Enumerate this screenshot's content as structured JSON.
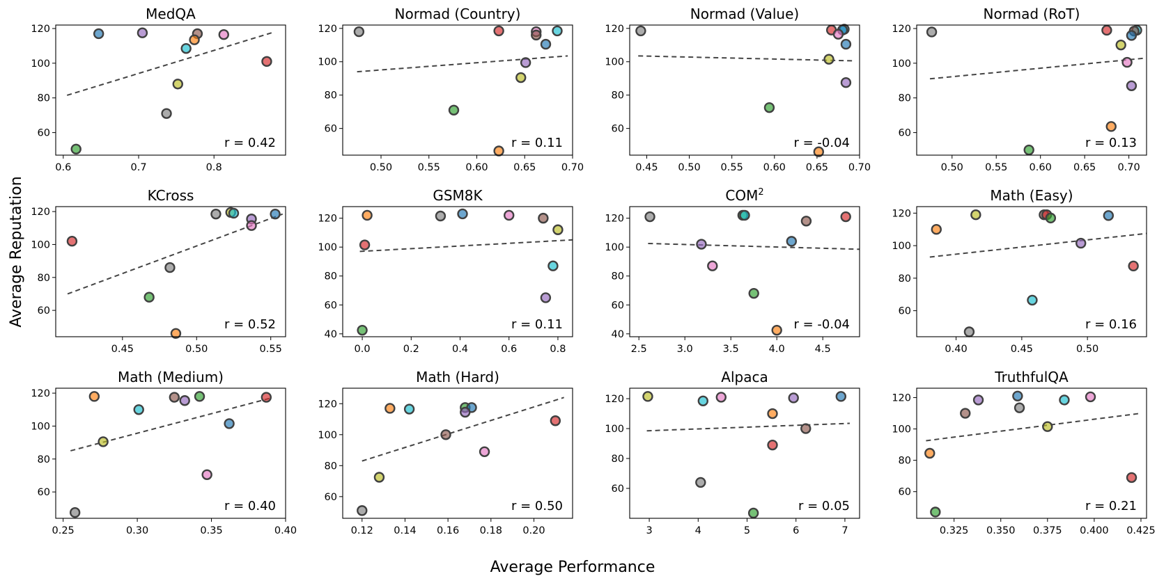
{
  "figure": {
    "xlabel": "Average Performance",
    "ylabel": "Average Reputation",
    "colors": {
      "blue": "#1f77b4",
      "orange": "#ff7f0e",
      "green": "#2ca02c",
      "red": "#d62728",
      "purple": "#9467bd",
      "brown": "#8c564b",
      "pink": "#e377c2",
      "gray": "#7f7f7f",
      "olive": "#bcbd22",
      "cyan": "#17becf",
      "edge": "#404040",
      "trend": "#444444"
    }
  },
  "chart_data": [
    {
      "type": "scatter",
      "title": "MedQA",
      "r_label": "r = 0.42",
      "xlim": [
        0.59,
        0.895
      ],
      "ylim": [
        47,
        122
      ],
      "xticks": [
        0.6,
        0.7,
        0.8
      ],
      "xtick_labels": [
        "0.6",
        "0.7",
        "0.8"
      ],
      "yticks": [
        60,
        80,
        100,
        120
      ],
      "ytick_labels": [
        "60",
        "80",
        "100",
        "120"
      ],
      "trend": [
        [
          0.605,
          81.5
        ],
        [
          0.88,
          118
        ]
      ],
      "points": [
        {
          "x": 0.647,
          "y": 117,
          "c": "blue"
        },
        {
          "x": 0.705,
          "y": 117.5,
          "c": "purple"
        },
        {
          "x": 0.778,
          "y": 117,
          "c": "brown"
        },
        {
          "x": 0.813,
          "y": 116.5,
          "c": "pink"
        },
        {
          "x": 0.774,
          "y": 113.5,
          "c": "orange"
        },
        {
          "x": 0.763,
          "y": 108.5,
          "c": "cyan"
        },
        {
          "x": 0.87,
          "y": 101,
          "c": "red"
        },
        {
          "x": 0.752,
          "y": 88,
          "c": "olive"
        },
        {
          "x": 0.737,
          "y": 71,
          "c": "gray"
        },
        {
          "x": 0.617,
          "y": 50.5,
          "c": "green"
        }
      ]
    },
    {
      "type": "scatter",
      "title": "Normad (Country)",
      "r_label": "r = 0.11",
      "xlim": [
        0.46,
        0.7
      ],
      "ylim": [
        44,
        122
      ],
      "xticks": [
        0.5,
        0.55,
        0.6,
        0.65,
        0.7
      ],
      "xtick_labels": [
        "0.50",
        "0.55",
        "0.60",
        "0.65",
        "0.70"
      ],
      "yticks": [
        60,
        80,
        100,
        120
      ],
      "ytick_labels": [
        "60",
        "80",
        "100",
        "120"
      ],
      "trend": [
        [
          0.475,
          94
        ],
        [
          0.695,
          103.5
        ]
      ],
      "points": [
        {
          "x": 0.477,
          "y": 118,
          "c": "gray"
        },
        {
          "x": 0.623,
          "y": 118.5,
          "c": "red"
        },
        {
          "x": 0.662,
          "y": 118,
          "c": "pink"
        },
        {
          "x": 0.684,
          "y": 118.5,
          "c": "cyan"
        },
        {
          "x": 0.662,
          "y": 116,
          "c": "brown"
        },
        {
          "x": 0.672,
          "y": 110.5,
          "c": "blue"
        },
        {
          "x": 0.651,
          "y": 99.5,
          "c": "purple"
        },
        {
          "x": 0.646,
          "y": 90.5,
          "c": "olive"
        },
        {
          "x": 0.576,
          "y": 71,
          "c": "green"
        },
        {
          "x": 0.623,
          "y": 46.5,
          "c": "orange"
        }
      ]
    },
    {
      "type": "scatter",
      "title": "Normad (Value)",
      "r_label": "r = -0.04",
      "xlim": [
        0.43,
        0.7
      ],
      "ylim": [
        44,
        122
      ],
      "xticks": [
        0.45,
        0.5,
        0.55,
        0.6,
        0.65,
        0.7
      ],
      "xtick_labels": [
        "0.45",
        "0.50",
        "0.55",
        "0.60",
        "0.65",
        "0.70"
      ],
      "yticks": [
        60,
        80,
        100,
        120
      ],
      "ytick_labels": [
        "60",
        "80",
        "100",
        "120"
      ],
      "trend": [
        [
          0.44,
          103.5
        ],
        [
          0.695,
          100.5
        ]
      ],
      "points": [
        {
          "x": 0.443,
          "y": 118.5,
          "c": "gray"
        },
        {
          "x": 0.667,
          "y": 119,
          "c": "red"
        },
        {
          "x": 0.682,
          "y": 119.5,
          "c": "cyan"
        },
        {
          "x": 0.68,
          "y": 119,
          "c": "blue"
        },
        {
          "x": 0.675,
          "y": 116.5,
          "c": "pink"
        },
        {
          "x": 0.684,
          "y": 110.5,
          "c": "blue"
        },
        {
          "x": 0.664,
          "y": 101.5,
          "c": "olive"
        },
        {
          "x": 0.684,
          "y": 87.5,
          "c": "purple"
        },
        {
          "x": 0.594,
          "y": 72.5,
          "c": "green"
        },
        {
          "x": 0.652,
          "y": 46,
          "c": "orange"
        }
      ]
    },
    {
      "type": "scatter",
      "title": "Normad (RoT)",
      "r_label": "r = 0.13",
      "xlim": [
        0.46,
        0.72
      ],
      "ylim": [
        47,
        122
      ],
      "xticks": [
        0.5,
        0.55,
        0.6,
        0.65,
        0.7
      ],
      "xtick_labels": [
        "0.50",
        "0.55",
        "0.60",
        "0.65",
        "0.70"
      ],
      "yticks": [
        60,
        80,
        100,
        120
      ],
      "ytick_labels": [
        "60",
        "80",
        "100",
        "120"
      ],
      "trend": [
        [
          0.475,
          91
        ],
        [
          0.72,
          103
        ]
      ],
      "points": [
        {
          "x": 0.477,
          "y": 118,
          "c": "gray"
        },
        {
          "x": 0.675,
          "y": 119,
          "c": "red"
        },
        {
          "x": 0.709,
          "y": 119,
          "c": "cyan"
        },
        {
          "x": 0.706,
          "y": 118.5,
          "c": "brown"
        },
        {
          "x": 0.703,
          "y": 116,
          "c": "blue"
        },
        {
          "x": 0.691,
          "y": 110.5,
          "c": "olive"
        },
        {
          "x": 0.698,
          "y": 100.5,
          "c": "pink"
        },
        {
          "x": 0.703,
          "y": 87,
          "c": "purple"
        },
        {
          "x": 0.68,
          "y": 63.5,
          "c": "orange"
        },
        {
          "x": 0.587,
          "y": 50,
          "c": "green"
        }
      ]
    },
    {
      "type": "scatter",
      "title": "KCross",
      "r_label": "r = 0.52",
      "xlim": [
        0.405,
        0.56
      ],
      "ylim": [
        44,
        123
      ],
      "xticks": [
        0.45,
        0.5,
        0.55
      ],
      "xtick_labels": [
        "0.45",
        "0.50",
        "0.55"
      ],
      "yticks": [
        60,
        80,
        100,
        120
      ],
      "ytick_labels": [
        "60",
        "80",
        "100",
        "120"
      ],
      "trend": [
        [
          0.413,
          70
        ],
        [
          0.558,
          118.5
        ]
      ],
      "points": [
        {
          "x": 0.513,
          "y": 118.5,
          "c": "gray"
        },
        {
          "x": 0.523,
          "y": 119.5,
          "c": "olive"
        },
        {
          "x": 0.525,
          "y": 119,
          "c": "cyan"
        },
        {
          "x": 0.553,
          "y": 118.5,
          "c": "blue"
        },
        {
          "x": 0.537,
          "y": 115.5,
          "c": "purple"
        },
        {
          "x": 0.537,
          "y": 111.5,
          "c": "pink"
        },
        {
          "x": 0.416,
          "y": 102,
          "c": "red"
        },
        {
          "x": 0.482,
          "y": 86,
          "c": "gray"
        },
        {
          "x": 0.468,
          "y": 68,
          "c": "green"
        },
        {
          "x": 0.486,
          "y": 46,
          "c": "orange"
        }
      ]
    },
    {
      "type": "scatter",
      "title": "GSM8K",
      "r_label": "r = 0.11",
      "xlim": [
        -0.08,
        0.86
      ],
      "ylim": [
        38,
        128
      ],
      "xticks": [
        0,
        0.2,
        0.4,
        0.6,
        0.8
      ],
      "xtick_labels": [
        "0.0",
        "0.2",
        "0.4",
        "0.6",
        "0.8"
      ],
      "yticks": [
        40,
        60,
        80,
        100,
        120
      ],
      "ytick_labels": [
        "40",
        "60",
        "80",
        "100",
        "120"
      ],
      "trend": [
        [
          -0.01,
          97
        ],
        [
          0.86,
          105
        ]
      ],
      "points": [
        {
          "x": 0.02,
          "y": 122,
          "c": "orange"
        },
        {
          "x": 0.32,
          "y": 121.5,
          "c": "gray"
        },
        {
          "x": 0.41,
          "y": 123,
          "c": "blue"
        },
        {
          "x": 0.6,
          "y": 122,
          "c": "pink"
        },
        {
          "x": 0.74,
          "y": 120,
          "c": "brown"
        },
        {
          "x": 0.8,
          "y": 112,
          "c": "olive"
        },
        {
          "x": 0.01,
          "y": 101.5,
          "c": "red"
        },
        {
          "x": 0.78,
          "y": 87,
          "c": "cyan"
        },
        {
          "x": 0.75,
          "y": 65,
          "c": "purple"
        },
        {
          "x": 0.0,
          "y": 42.5,
          "c": "green"
        }
      ]
    },
    {
      "type": "scatter",
      "title": "COM",
      "title_sup": "2",
      "r_label": "r = -0.04",
      "xlim": [
        2.4,
        4.9
      ],
      "ylim": [
        38,
        128
      ],
      "xticks": [
        2.5,
        3.0,
        3.5,
        4.0,
        4.5
      ],
      "xtick_labels": [
        "2.5",
        "3.0",
        "3.5",
        "4.0",
        "4.5"
      ],
      "yticks": [
        40,
        60,
        80,
        100,
        120
      ],
      "ytick_labels": [
        "40",
        "60",
        "80",
        "100",
        "120"
      ],
      "trend": [
        [
          2.6,
          102.5
        ],
        [
          4.9,
          98.5
        ]
      ],
      "points": [
        {
          "x": 2.62,
          "y": 121,
          "c": "gray"
        },
        {
          "x": 3.63,
          "y": 122,
          "c": "green"
        },
        {
          "x": 3.65,
          "y": 122,
          "c": "cyan"
        },
        {
          "x": 4.75,
          "y": 121,
          "c": "red"
        },
        {
          "x": 4.32,
          "y": 118,
          "c": "brown"
        },
        {
          "x": 4.16,
          "y": 104,
          "c": "blue"
        },
        {
          "x": 3.18,
          "y": 102,
          "c": "purple"
        },
        {
          "x": 3.3,
          "y": 87,
          "c": "pink"
        },
        {
          "x": 3.75,
          "y": 68,
          "c": "green"
        },
        {
          "x": 4.0,
          "y": 42.5,
          "c": "orange"
        }
      ]
    },
    {
      "type": "scatter",
      "title": "Math (Easy)",
      "r_label": "r = 0.16",
      "xlim": [
        0.37,
        0.545
      ],
      "ylim": [
        44,
        124
      ],
      "xticks": [
        0.4,
        0.45,
        0.5
      ],
      "xtick_labels": [
        "0.40",
        "0.45",
        "0.50"
      ],
      "yticks": [
        60,
        80,
        100,
        120
      ],
      "ytick_labels": [
        "60",
        "80",
        "100",
        "120"
      ],
      "trend": [
        [
          0.38,
          93
        ],
        [
          0.545,
          107.5
        ]
      ],
      "points": [
        {
          "x": 0.385,
          "y": 110,
          "c": "orange"
        },
        {
          "x": 0.415,
          "y": 119,
          "c": "olive"
        },
        {
          "x": 0.467,
          "y": 119,
          "c": "brown"
        },
        {
          "x": 0.469,
          "y": 119,
          "c": "red"
        },
        {
          "x": 0.472,
          "y": 117,
          "c": "green"
        },
        {
          "x": 0.516,
          "y": 118.5,
          "c": "blue"
        },
        {
          "x": 0.495,
          "y": 101.5,
          "c": "purple"
        },
        {
          "x": 0.535,
          "y": 87.5,
          "c": "red"
        },
        {
          "x": 0.458,
          "y": 66.5,
          "c": "cyan"
        },
        {
          "x": 0.41,
          "y": 47,
          "c": "gray"
        }
      ]
    },
    {
      "type": "scatter",
      "title": "Math (Medium)",
      "r_label": "r = 0.40",
      "xlim": [
        0.245,
        0.4
      ],
      "ylim": [
        44,
        123
      ],
      "xticks": [
        0.25,
        0.3,
        0.35,
        0.4
      ],
      "xtick_labels": [
        "0.25",
        "0.30",
        "0.35",
        "0.40"
      ],
      "yticks": [
        60,
        80,
        100,
        120
      ],
      "ytick_labels": [
        "60",
        "80",
        "100",
        "120"
      ],
      "trend": [
        [
          0.255,
          85
        ],
        [
          0.39,
          117
        ]
      ],
      "points": [
        {
          "x": 0.271,
          "y": 118,
          "c": "orange"
        },
        {
          "x": 0.325,
          "y": 117.5,
          "c": "brown"
        },
        {
          "x": 0.332,
          "y": 115.5,
          "c": "purple"
        },
        {
          "x": 0.342,
          "y": 118,
          "c": "green"
        },
        {
          "x": 0.387,
          "y": 117.5,
          "c": "red"
        },
        {
          "x": 0.301,
          "y": 110,
          "c": "cyan"
        },
        {
          "x": 0.362,
          "y": 101.5,
          "c": "blue"
        },
        {
          "x": 0.277,
          "y": 90.5,
          "c": "olive"
        },
        {
          "x": 0.347,
          "y": 70.5,
          "c": "pink"
        },
        {
          "x": 0.258,
          "y": 47.5,
          "c": "gray"
        }
      ]
    },
    {
      "type": "scatter",
      "title": "Math (Hard)",
      "r_label": "r = 0.50",
      "xlim": [
        0.111,
        0.218
      ],
      "ylim": [
        46,
        130
      ],
      "xticks": [
        0.12,
        0.14,
        0.16,
        0.18,
        0.2
      ],
      "xtick_labels": [
        "0.12",
        "0.14",
        "0.16",
        "0.18",
        "0.20"
      ],
      "yticks": [
        60,
        80,
        100,
        120
      ],
      "ytick_labels": [
        "60",
        "80",
        "100",
        "120"
      ],
      "trend": [
        [
          0.12,
          83
        ],
        [
          0.214,
          124
        ]
      ],
      "points": [
        {
          "x": 0.133,
          "y": 117,
          "c": "orange"
        },
        {
          "x": 0.142,
          "y": 116.5,
          "c": "cyan"
        },
        {
          "x": 0.168,
          "y": 117.5,
          "c": "green"
        },
        {
          "x": 0.171,
          "y": 117.5,
          "c": "blue"
        },
        {
          "x": 0.168,
          "y": 114.5,
          "c": "purple"
        },
        {
          "x": 0.159,
          "y": 100,
          "c": "brown"
        },
        {
          "x": 0.21,
          "y": 109,
          "c": "red"
        },
        {
          "x": 0.177,
          "y": 89,
          "c": "pink"
        },
        {
          "x": 0.128,
          "y": 72.5,
          "c": "olive"
        },
        {
          "x": 0.12,
          "y": 51,
          "c": "gray"
        }
      ]
    },
    {
      "type": "scatter",
      "title": "Alpaca",
      "r_label": "r = 0.05",
      "xlim": [
        2.6,
        7.3
      ],
      "ylim": [
        40,
        127
      ],
      "xticks": [
        3,
        4,
        5,
        6,
        7
      ],
      "xtick_labels": [
        "3",
        "4",
        "5",
        "6",
        "7"
      ],
      "yticks": [
        60,
        80,
        100,
        120
      ],
      "ytick_labels": [
        "60",
        "80",
        "100",
        "120"
      ],
      "trend": [
        [
          2.95,
          98.5
        ],
        [
          7.1,
          103.5
        ]
      ],
      "points": [
        {
          "x": 2.97,
          "y": 121.5,
          "c": "olive"
        },
        {
          "x": 4.1,
          "y": 118.5,
          "c": "cyan"
        },
        {
          "x": 4.47,
          "y": 121,
          "c": "pink"
        },
        {
          "x": 5.95,
          "y": 120.5,
          "c": "purple"
        },
        {
          "x": 6.92,
          "y": 121.5,
          "c": "blue"
        },
        {
          "x": 5.52,
          "y": 110,
          "c": "orange"
        },
        {
          "x": 6.2,
          "y": 100,
          "c": "brown"
        },
        {
          "x": 5.52,
          "y": 89,
          "c": "red"
        },
        {
          "x": 4.05,
          "y": 64,
          "c": "gray"
        },
        {
          "x": 5.13,
          "y": 43.5,
          "c": "green"
        }
      ]
    },
    {
      "type": "scatter",
      "title": "TruthfulQA",
      "r_label": "r = 0.21",
      "xlim": [
        0.305,
        0.428
      ],
      "ylim": [
        43,
        126
      ],
      "xticks": [
        0.325,
        0.35,
        0.375,
        0.4,
        0.425
      ],
      "xtick_labels": [
        "0.325",
        "0.350",
        "0.375",
        "0.400",
        "0.425"
      ],
      "yticks": [
        60,
        80,
        100,
        120
      ],
      "ytick_labels": [
        "60",
        "80",
        "100",
        "120"
      ],
      "trend": [
        [
          0.31,
          92.5
        ],
        [
          0.425,
          110
        ]
      ],
      "points": [
        {
          "x": 0.338,
          "y": 118.5,
          "c": "purple"
        },
        {
          "x": 0.359,
          "y": 121,
          "c": "blue"
        },
        {
          "x": 0.384,
          "y": 118.5,
          "c": "cyan"
        },
        {
          "x": 0.398,
          "y": 120.5,
          "c": "pink"
        },
        {
          "x": 0.36,
          "y": 113.5,
          "c": "gray"
        },
        {
          "x": 0.331,
          "y": 110,
          "c": "brown"
        },
        {
          "x": 0.375,
          "y": 101.5,
          "c": "olive"
        },
        {
          "x": 0.312,
          "y": 84.5,
          "c": "orange"
        },
        {
          "x": 0.42,
          "y": 69,
          "c": "red"
        },
        {
          "x": 0.315,
          "y": 47,
          "c": "green"
        }
      ]
    }
  ]
}
